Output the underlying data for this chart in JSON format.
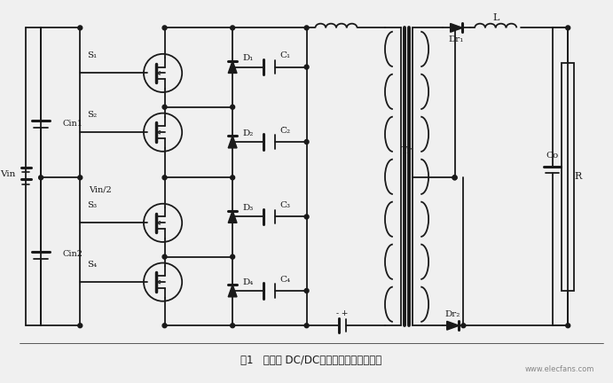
{
  "title": "图1  三电平 DC/DC零电压软开关变换电路",
  "bg_color": "#f0f0f0",
  "fg_color": "#1a1a1a",
  "fig_width": 6.91,
  "fig_height": 4.32,
  "dpi": 100,
  "watermark": "www.elecfans.com",
  "caption": "图1   三电平 DC/DC零电压软开关变换电路"
}
